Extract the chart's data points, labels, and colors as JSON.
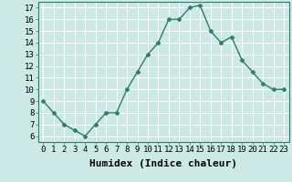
{
  "x": [
    0,
    1,
    2,
    3,
    4,
    5,
    6,
    7,
    8,
    9,
    10,
    11,
    12,
    13,
    14,
    15,
    16,
    17,
    18,
    19,
    20,
    21,
    22,
    23
  ],
  "y": [
    9,
    8,
    7,
    6.5,
    6,
    7,
    8,
    8,
    10,
    11.5,
    13,
    14,
    16,
    16,
    17,
    17.2,
    15,
    14,
    14.5,
    12.5,
    11.5,
    10.5,
    10,
    10
  ],
  "line_color": "#2e7d6e",
  "marker": "D",
  "marker_size": 2.5,
  "background_color": "#cce9e5",
  "grid_color": "#ffffff",
  "xlabel": "Humidex (Indice chaleur)",
  "ylim": [
    5.5,
    17.5
  ],
  "xlim": [
    -0.5,
    23.5
  ],
  "yticks": [
    6,
    7,
    8,
    9,
    10,
    11,
    12,
    13,
    14,
    15,
    16,
    17
  ],
  "xticks": [
    0,
    1,
    2,
    3,
    4,
    5,
    6,
    7,
    8,
    9,
    10,
    11,
    12,
    13,
    14,
    15,
    16,
    17,
    18,
    19,
    20,
    21,
    22,
    23
  ],
  "tick_fontsize": 6.5,
  "xlabel_fontsize": 8,
  "line_width": 1.0
}
